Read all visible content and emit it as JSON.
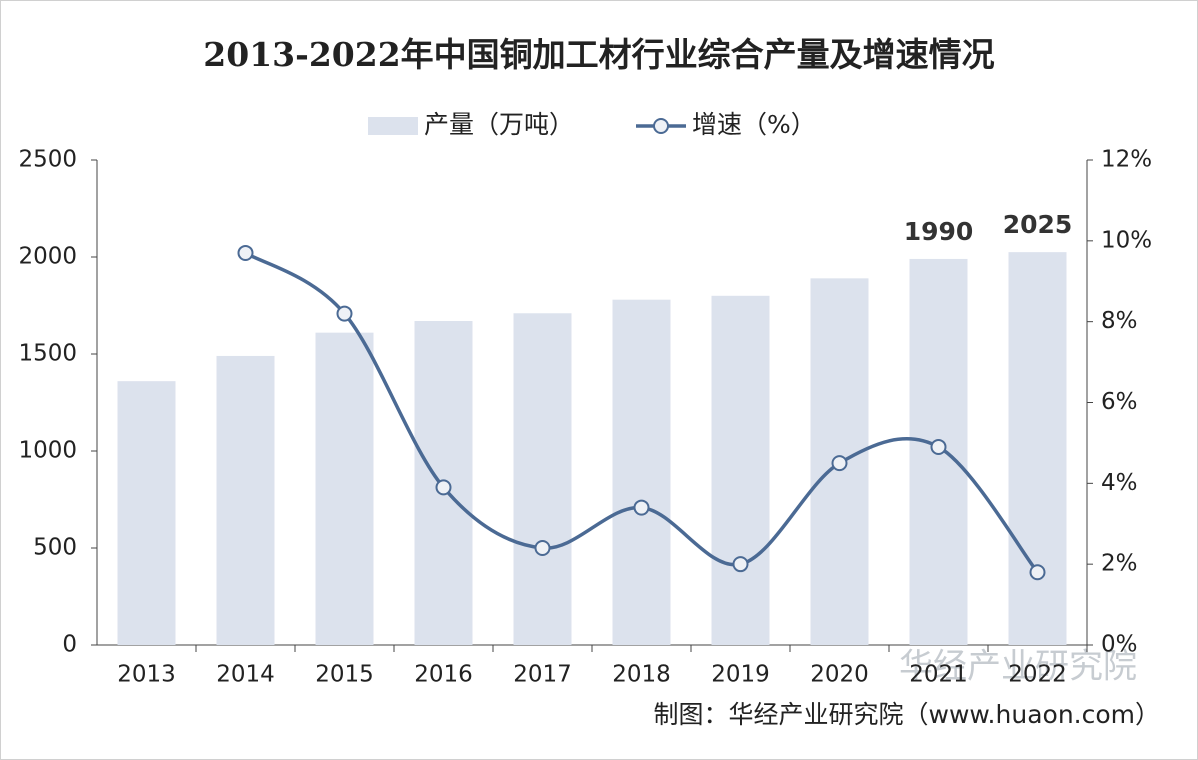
{
  "chart_data": {
    "type": "bar-line",
    "title": "2013-2022年中国铜加工材行业综合产量及增速情况",
    "categories": [
      "2013",
      "2014",
      "2015",
      "2016",
      "2017",
      "2018",
      "2019",
      "2020",
      "2021",
      "2022"
    ],
    "series": [
      {
        "name": "产量（万吨）",
        "type": "bar",
        "color": "#dce2ed",
        "values": [
          1360,
          1490,
          1610,
          1670,
          1710,
          1780,
          1800,
          1890,
          1990,
          2025
        ],
        "value_labels": [
          null,
          null,
          null,
          null,
          null,
          null,
          null,
          null,
          "1990",
          "2025"
        ]
      },
      {
        "name": "增速（%）",
        "type": "line",
        "axis": "y2",
        "color": "#4b6a94",
        "values": [
          null,
          9.7,
          8.2,
          3.9,
          2.4,
          3.4,
          2.0,
          4.5,
          4.9,
          1.8
        ]
      }
    ],
    "ylim": [
      0,
      2500
    ],
    "yticks": [
      0,
      500,
      1000,
      1500,
      2000,
      2500
    ],
    "y2lim": [
      0,
      12
    ],
    "y2ticks": [
      {
        "value": 0,
        "label": "0%"
      },
      {
        "value": 2,
        "label": "2%"
      },
      {
        "value": 4,
        "label": "4%"
      },
      {
        "value": 6,
        "label": "6%"
      },
      {
        "value": 8,
        "label": "8%"
      },
      {
        "value": 10,
        "label": "10%"
      },
      {
        "value": 12,
        "label": "12%"
      }
    ],
    "legend": "top",
    "source": "制图：华经产业研究院（www.huaon.com）",
    "watermark": "华经产业研究院"
  }
}
